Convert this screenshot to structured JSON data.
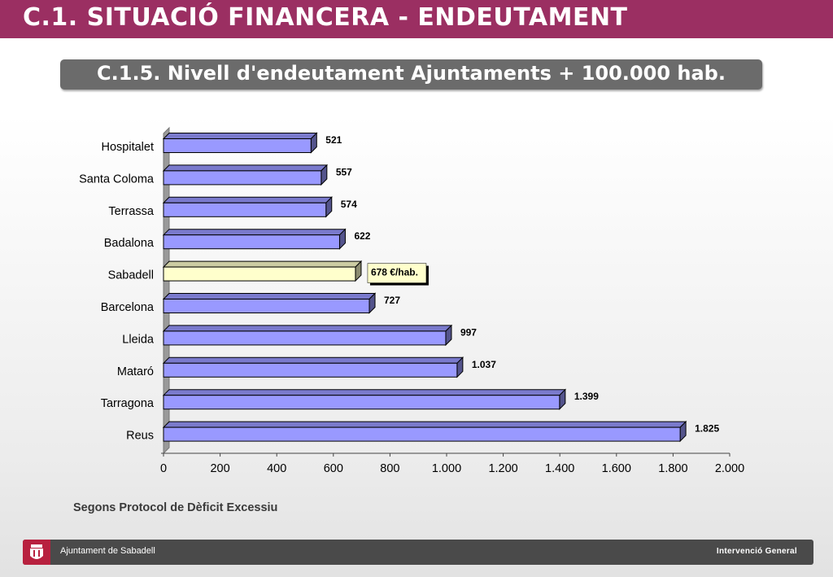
{
  "header": {
    "title": "C.1. SITUACIÓ FINANCERA - ENDEUTAMENT",
    "subtitle": "C.1.5. Nivell d'endeutament Ajuntaments + 100.000 hab."
  },
  "note": "Segons Protocol de Dèficit Excessiu",
  "footer": {
    "organization": "Ajuntament de Sabadell",
    "department": "Intervenció General",
    "logo": "sabadell-coat-of-arms-icon"
  },
  "colors": {
    "header_bg": "#9b2f62",
    "bar": "#9999ff",
    "bar_highlight": "#ffffcc",
    "footer_bg": "#4a4a4a"
  },
  "chart_data": {
    "type": "bar",
    "orientation": "horizontal",
    "categories": [
      "Hospitalet",
      "Santa Coloma",
      "Terrassa",
      "Badalona",
      "Sabadell",
      "Barcelona",
      "Lleida",
      "Mataró",
      "Tarragona",
      "Reus"
    ],
    "values": [
      521,
      557,
      574,
      622,
      678,
      727,
      997,
      1037,
      1399,
      1825
    ],
    "data_labels": [
      "521",
      "557",
      "574",
      "622",
      "678 €/hab.",
      "727",
      "997",
      "1.037",
      "1.399",
      "1.825"
    ],
    "highlight": "Sabadell",
    "xlim": [
      0,
      2000
    ],
    "xticks": [
      0,
      200,
      400,
      600,
      800,
      1000,
      1200,
      1400,
      1600,
      1800,
      2000
    ],
    "xtick_labels": [
      "0",
      "200",
      "400",
      "600",
      "800",
      "1.000",
      "1.200",
      "1.400",
      "1.600",
      "1.800",
      "2.000"
    ],
    "grid": false,
    "style": "3d"
  }
}
